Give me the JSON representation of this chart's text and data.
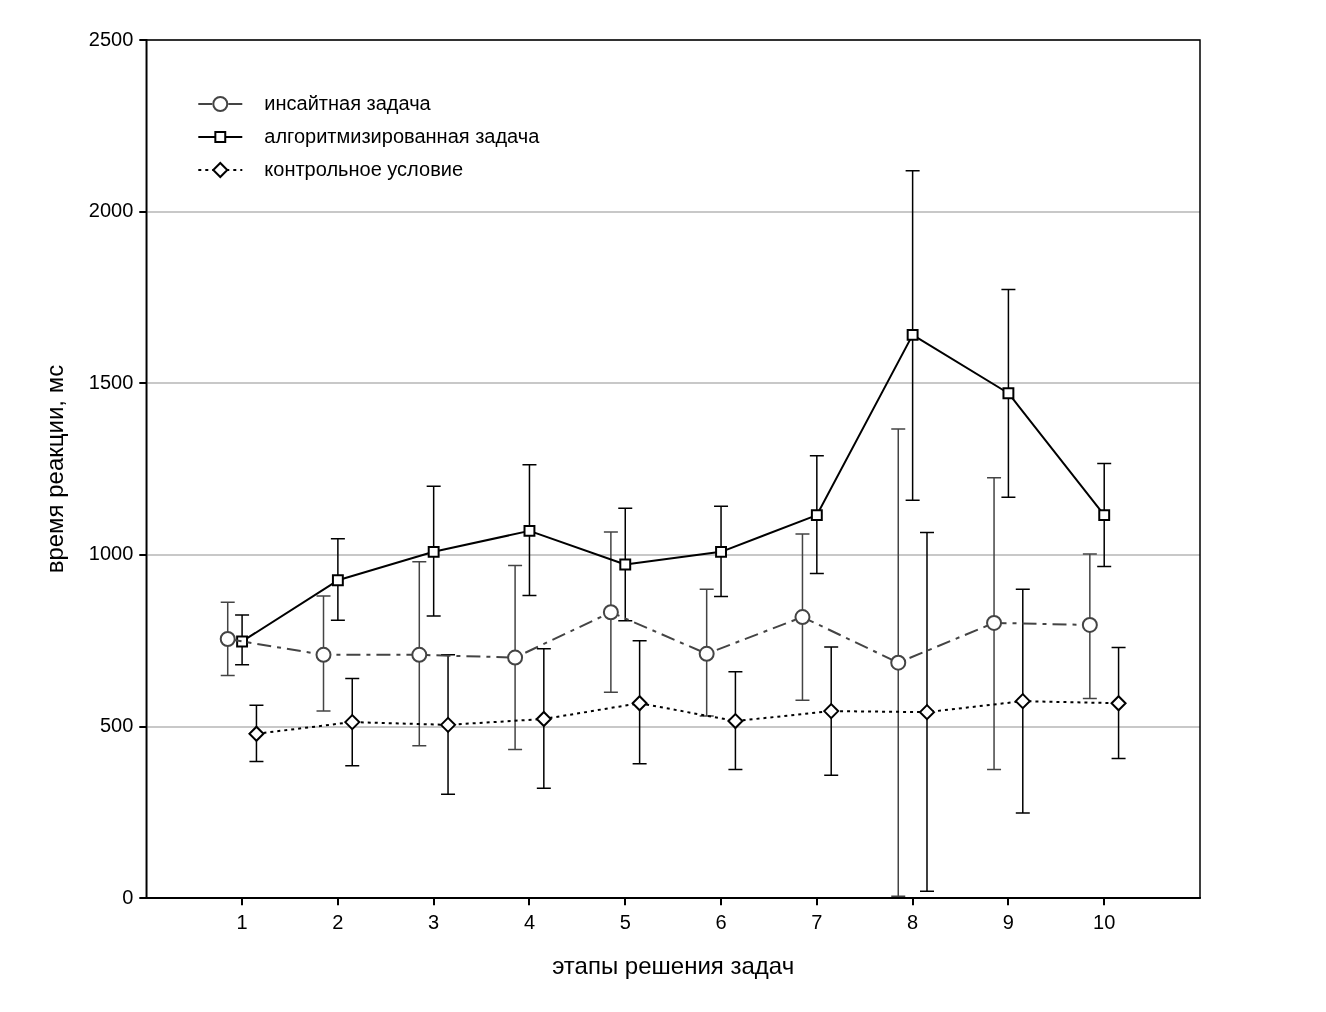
{
  "chart_data": {
    "type": "line",
    "xlabel": "этапы решения задач",
    "ylabel": "время реакции, мс",
    "xlim": [
      0,
      11
    ],
    "xticks": [
      1,
      2,
      3,
      4,
      5,
      6,
      7,
      8,
      9,
      10
    ],
    "ylim": [
      0,
      2500
    ],
    "yticks": [
      0,
      500,
      1000,
      1500,
      2000,
      2500
    ],
    "grid": "y",
    "legend": "top left",
    "series": [
      {
        "name": "инсайтная задача",
        "color": "#444444",
        "marker": "circle",
        "line_style": "dashed",
        "x": [
          0.85,
          1.85,
          2.85,
          3.85,
          4.85,
          5.85,
          6.85,
          7.85,
          8.85,
          9.85
        ],
        "values": [
          755,
          709,
          709,
          701,
          833,
          712,
          819,
          686,
          802,
          796
        ],
        "errors": [
          [
            649,
            862
          ],
          [
            545,
            880
          ],
          [
            444,
            980
          ],
          [
            433,
            969
          ],
          [
            600,
            1067
          ],
          [
            531,
            900
          ],
          [
            577,
            1061
          ],
          [
            6,
            1367
          ],
          [
            375,
            1225
          ],
          [
            582,
            1003
          ]
        ]
      },
      {
        "name": "алгоритмизированная задача",
        "color": "#000000",
        "marker": "square",
        "line_style": "solid",
        "x": [
          1,
          2,
          3,
          4,
          5,
          6,
          7,
          8,
          9,
          10
        ],
        "values": [
          748,
          926,
          1009,
          1070,
          972,
          1009,
          1116,
          1641,
          1471,
          1116
        ],
        "errors": [
          [
            680,
            825
          ],
          [
            810,
            1047
          ],
          [
            822,
            1200
          ],
          [
            882,
            1263
          ],
          [
            808,
            1136
          ],
          [
            879,
            1142
          ],
          [
            946,
            1289
          ],
          [
            1159,
            2119
          ],
          [
            1168,
            1773
          ],
          [
            966,
            1266
          ]
        ]
      },
      {
        "name": "контрольное условие",
        "color": "#000000",
        "marker": "diamond",
        "line_style": "dotted",
        "x": [
          1.15,
          2.15,
          3.15,
          4.15,
          5.15,
          6.15,
          7.15,
          8.15,
          9.15,
          10.15
        ],
        "values": [
          479,
          513,
          505,
          522,
          568,
          516,
          545,
          542,
          574,
          568
        ],
        "errors": [
          [
            398,
            562
          ],
          [
            386,
            640
          ],
          [
            303,
            709
          ],
          [
            320,
            727
          ],
          [
            392,
            750
          ],
          [
            375,
            660
          ],
          [
            358,
            732
          ],
          [
            20,
            1065
          ],
          [
            248,
            900
          ],
          [
            407,
            730
          ]
        ]
      }
    ]
  }
}
